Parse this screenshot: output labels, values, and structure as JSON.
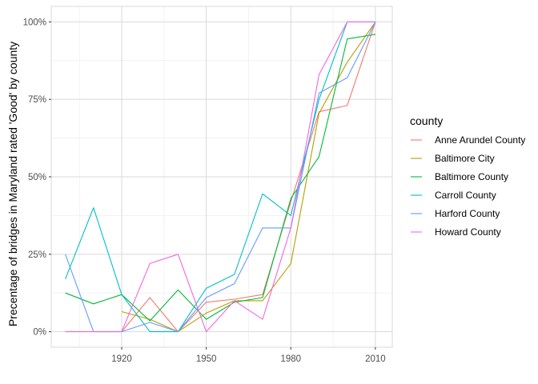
{
  "chart_data": {
    "type": "line",
    "title": "",
    "xlabel": "",
    "ylabel": "Precentage of bridges in Maryland rated 'Good' by county",
    "x": [
      1900,
      1910,
      1920,
      1930,
      1940,
      1950,
      1960,
      1970,
      1980,
      1990,
      2000,
      2010
    ],
    "xticks": [
      1920,
      1950,
      1980,
      2010
    ],
    "xtick_labels": [
      "1920",
      "1950",
      "1980",
      "2010"
    ],
    "xlim": [
      1895,
      2016
    ],
    "yticks": [
      0,
      25,
      50,
      75,
      100
    ],
    "ytick_labels": [
      "0%",
      "25%",
      "50%",
      "75%",
      "100%"
    ],
    "ylim": [
      -5,
      105
    ],
    "grid": true,
    "legend_title": "county",
    "legend_position": "right",
    "series": [
      {
        "name": "Anne Arundel County",
        "color": "#F8766D",
        "values": [
          null,
          null,
          0,
          11,
          0,
          9.5,
          10.5,
          12,
          42,
          71,
          73,
          100
        ]
      },
      {
        "name": "Baltimore City",
        "color": "#B79F00",
        "values": [
          null,
          null,
          6.5,
          4,
          0,
          6,
          10,
          10,
          22,
          70.5,
          87,
          100
        ]
      },
      {
        "name": "Baltimore County",
        "color": "#00BA38",
        "values": [
          12.5,
          9,
          12,
          3.5,
          13.5,
          4,
          9.5,
          11,
          43,
          56.5,
          94.5,
          96
        ]
      },
      {
        "name": "Carroll County",
        "color": "#00BFC4",
        "values": [
          17,
          40,
          12,
          0,
          0,
          14,
          18.5,
          44.5,
          37.5,
          75,
          100,
          100
        ]
      },
      {
        "name": "Harford County",
        "color": "#619CFF",
        "values": [
          25,
          0,
          0,
          3,
          0,
          11,
          15.5,
          33.5,
          33.5,
          77,
          82,
          100
        ]
      },
      {
        "name": "Howard County",
        "color": "#F564E3",
        "values": [
          0,
          0,
          0,
          22,
          25,
          0,
          10,
          4,
          33.5,
          83,
          100,
          100
        ]
      }
    ]
  }
}
